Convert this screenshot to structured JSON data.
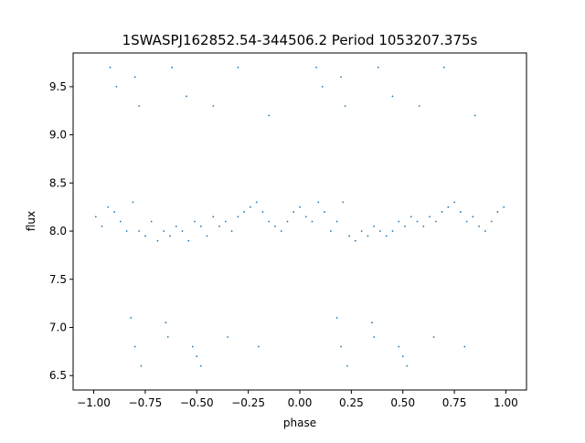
{
  "chart_data": {
    "type": "scatter",
    "title": "1SWASPJ162852.54-344506.2 Period 1053207.375s",
    "xlabel": "phase",
    "ylabel": "flux",
    "xlim": [
      -1.1,
      1.1
    ],
    "ylim": [
      6.35,
      9.85
    ],
    "xticks": [
      -1.0,
      -0.75,
      -0.5,
      -0.25,
      0.0,
      0.25,
      0.5,
      0.75,
      1.0
    ],
    "xtick_labels": [
      "−1.00",
      "−0.75",
      "−0.50",
      "−0.25",
      "0.00",
      "0.25",
      "0.50",
      "0.75",
      "1.00"
    ],
    "yticks": [
      6.5,
      7.0,
      7.5,
      8.0,
      8.5,
      9.0,
      9.5
    ],
    "ytick_labels": [
      "6.5",
      "7.0",
      "7.5",
      "8.0",
      "8.5",
      "9.0",
      "9.5"
    ],
    "grid": false,
    "marker_color": "#1f77b4",
    "marker": "small dots",
    "series": [
      {
        "description_points": "phase-folded light curve, mirrored over two cycles",
        "points": [
          [
            -0.99,
            8.15
          ],
          [
            -0.96,
            8.05
          ],
          [
            -0.93,
            8.25
          ],
          [
            -0.9,
            8.2
          ],
          [
            -0.87,
            8.1
          ],
          [
            -0.84,
            8.0
          ],
          [
            -0.81,
            8.3
          ],
          [
            -0.78,
            8.0
          ],
          [
            -0.75,
            7.95
          ],
          [
            -0.72,
            8.1
          ],
          [
            -0.69,
            7.9
          ],
          [
            -0.66,
            8.0
          ],
          [
            -0.63,
            7.95
          ],
          [
            -0.6,
            8.05
          ],
          [
            -0.57,
            8.0
          ],
          [
            -0.54,
            7.9
          ],
          [
            -0.51,
            8.1
          ],
          [
            -0.48,
            8.05
          ],
          [
            -0.45,
            7.95
          ],
          [
            -0.42,
            8.15
          ],
          [
            -0.39,
            8.05
          ],
          [
            -0.36,
            8.1
          ],
          [
            -0.33,
            8.0
          ],
          [
            -0.3,
            8.15
          ],
          [
            -0.27,
            8.2
          ],
          [
            -0.24,
            8.25
          ],
          [
            -0.21,
            8.3
          ],
          [
            -0.18,
            8.2
          ],
          [
            -0.15,
            8.1
          ],
          [
            -0.12,
            8.05
          ],
          [
            -0.09,
            8.0
          ],
          [
            -0.06,
            8.1
          ],
          [
            -0.03,
            8.2
          ],
          [
            0.0,
            8.25
          ],
          [
            0.03,
            8.15
          ],
          [
            0.06,
            8.1
          ],
          [
            0.09,
            8.3
          ],
          [
            0.12,
            8.2
          ],
          [
            0.15,
            8.0
          ],
          [
            0.18,
            8.1
          ],
          [
            0.21,
            8.3
          ],
          [
            0.24,
            7.95
          ],
          [
            0.27,
            7.9
          ],
          [
            0.3,
            8.0
          ],
          [
            0.33,
            7.95
          ],
          [
            0.36,
            8.05
          ],
          [
            0.39,
            8.0
          ],
          [
            0.42,
            7.95
          ],
          [
            0.45,
            8.0
          ],
          [
            0.48,
            8.1
          ],
          [
            0.51,
            8.05
          ],
          [
            0.54,
            8.15
          ],
          [
            0.57,
            8.1
          ],
          [
            0.6,
            8.05
          ],
          [
            0.63,
            8.15
          ],
          [
            0.66,
            8.1
          ],
          [
            0.69,
            8.2
          ],
          [
            0.72,
            8.25
          ],
          [
            0.75,
            8.3
          ],
          [
            0.78,
            8.2
          ],
          [
            0.81,
            8.1
          ],
          [
            0.84,
            8.15
          ],
          [
            0.87,
            8.05
          ],
          [
            0.9,
            8.0
          ],
          [
            0.93,
            8.1
          ],
          [
            0.96,
            8.2
          ],
          [
            0.99,
            8.25
          ],
          [
            -0.92,
            9.7
          ],
          [
            -0.89,
            9.5
          ],
          [
            -0.8,
            9.6
          ],
          [
            -0.78,
            9.3
          ],
          [
            -0.62,
            9.7
          ],
          [
            -0.55,
            9.4
          ],
          [
            -0.42,
            9.3
          ],
          [
            -0.3,
            9.7
          ],
          [
            -0.15,
            9.2
          ],
          [
            0.08,
            9.7
          ],
          [
            0.11,
            9.5
          ],
          [
            0.2,
            9.6
          ],
          [
            0.22,
            9.3
          ],
          [
            0.38,
            9.7
          ],
          [
            0.45,
            9.4
          ],
          [
            0.58,
            9.3
          ],
          [
            0.7,
            9.7
          ],
          [
            0.85,
            9.2
          ],
          [
            -0.82,
            7.1
          ],
          [
            -0.8,
            6.8
          ],
          [
            -0.77,
            6.6
          ],
          [
            -0.65,
            7.05
          ],
          [
            -0.64,
            6.9
          ],
          [
            -0.52,
            6.8
          ],
          [
            -0.5,
            6.7
          ],
          [
            -0.48,
            6.6
          ],
          [
            -0.35,
            6.9
          ],
          [
            -0.2,
            6.8
          ],
          [
            0.18,
            7.1
          ],
          [
            0.2,
            6.8
          ],
          [
            0.23,
            6.6
          ],
          [
            0.35,
            7.05
          ],
          [
            0.36,
            6.9
          ],
          [
            0.48,
            6.8
          ],
          [
            0.5,
            6.7
          ],
          [
            0.52,
            6.6
          ],
          [
            0.65,
            6.9
          ],
          [
            0.8,
            6.8
          ]
        ]
      }
    ]
  }
}
